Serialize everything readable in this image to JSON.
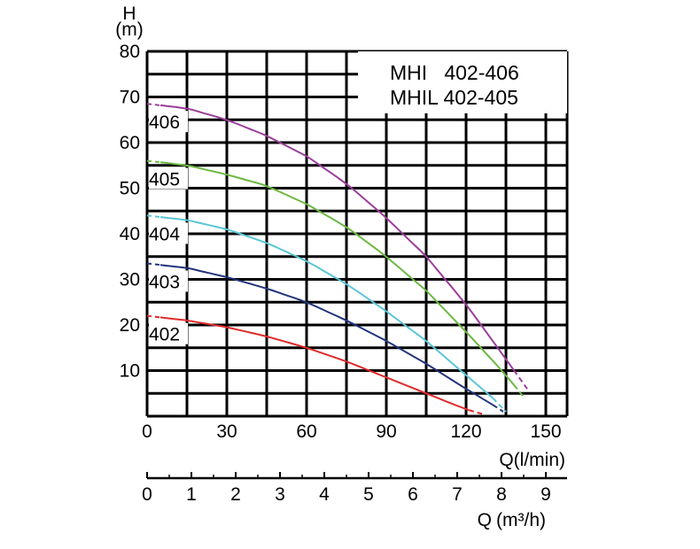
{
  "chart_data": {
    "type": "line",
    "title_lines": [
      "MHI   402-406",
      "MHIL 402-405"
    ],
    "y_axis": {
      "label_top": "H",
      "label_unit": "(m)",
      "ylim": [
        0,
        80
      ],
      "ticks": [
        10,
        20,
        30,
        40,
        50,
        60,
        70,
        80
      ],
      "tick_labels": [
        "10",
        "20",
        "30",
        "40",
        "50",
        "60",
        "70",
        "80"
      ]
    },
    "x_axis": {
      "label": "Q(l/min)",
      "xlim": [
        0,
        158
      ],
      "ticks": [
        0,
        30,
        60,
        90,
        120,
        150
      ],
      "tick_labels": [
        "0",
        "30",
        "60",
        "90",
        "120",
        "150"
      ]
    },
    "x_axis_secondary": {
      "label": "Q",
      "unit_label": "(m³/h)",
      "ticks": [
        0,
        1,
        2,
        3,
        4,
        5,
        6,
        7,
        8,
        9
      ],
      "tick_labels": [
        "0",
        "1",
        "2",
        "3",
        "4",
        "5",
        "6",
        "7",
        "8",
        "9"
      ]
    },
    "grid": true,
    "series": [
      {
        "name": "406",
        "color": "#9b3d9a",
        "points": [
          [
            0,
            68.5
          ],
          [
            15,
            67.5
          ],
          [
            30,
            65
          ],
          [
            45,
            61.5
          ],
          [
            60,
            57
          ],
          [
            75,
            51
          ],
          [
            90,
            43.5
          ],
          [
            105,
            35
          ],
          [
            120,
            24.5
          ],
          [
            135,
            12.5
          ],
          [
            143,
            6
          ]
        ],
        "dashed_before": 5,
        "dashed_after": 138
      },
      {
        "name": "405",
        "color": "#6cb842",
        "points": [
          [
            0,
            56
          ],
          [
            15,
            55
          ],
          [
            30,
            53
          ],
          [
            45,
            50.5
          ],
          [
            60,
            46.5
          ],
          [
            75,
            41.5
          ],
          [
            90,
            35
          ],
          [
            105,
            27.5
          ],
          [
            120,
            18.5
          ],
          [
            135,
            9
          ],
          [
            142,
            4
          ]
        ],
        "dashed_before": 5,
        "dashed_after": 138
      },
      {
        "name": "404",
        "color": "#5bc6d6",
        "points": [
          [
            0,
            44
          ],
          [
            15,
            43
          ],
          [
            30,
            41
          ],
          [
            45,
            38
          ],
          [
            60,
            34
          ],
          [
            75,
            29
          ],
          [
            90,
            23
          ],
          [
            105,
            16.5
          ],
          [
            120,
            9
          ],
          [
            130,
            4
          ],
          [
            135,
            1
          ]
        ],
        "dashed_before": 5,
        "dashed_after": 130
      },
      {
        "name": "403",
        "color": "#23347a",
        "points": [
          [
            0,
            33.5
          ],
          [
            15,
            32.5
          ],
          [
            30,
            30.5
          ],
          [
            45,
            28
          ],
          [
            60,
            25
          ],
          [
            75,
            21
          ],
          [
            90,
            16.5
          ],
          [
            105,
            11.5
          ],
          [
            120,
            6
          ],
          [
            130,
            2.5
          ],
          [
            134,
            1
          ]
        ],
        "dashed_before": 5,
        "dashed_after": 130
      },
      {
        "name": "402",
        "color": "#e02b2b",
        "points": [
          [
            0,
            22
          ],
          [
            15,
            21
          ],
          [
            30,
            19.5
          ],
          [
            45,
            17.5
          ],
          [
            60,
            15
          ],
          [
            75,
            12
          ],
          [
            90,
            8.5
          ],
          [
            105,
            5
          ],
          [
            120,
            1.5
          ],
          [
            126,
            0.5
          ]
        ],
        "dashed_before": 5,
        "dashed_after": 121
      }
    ]
  }
}
